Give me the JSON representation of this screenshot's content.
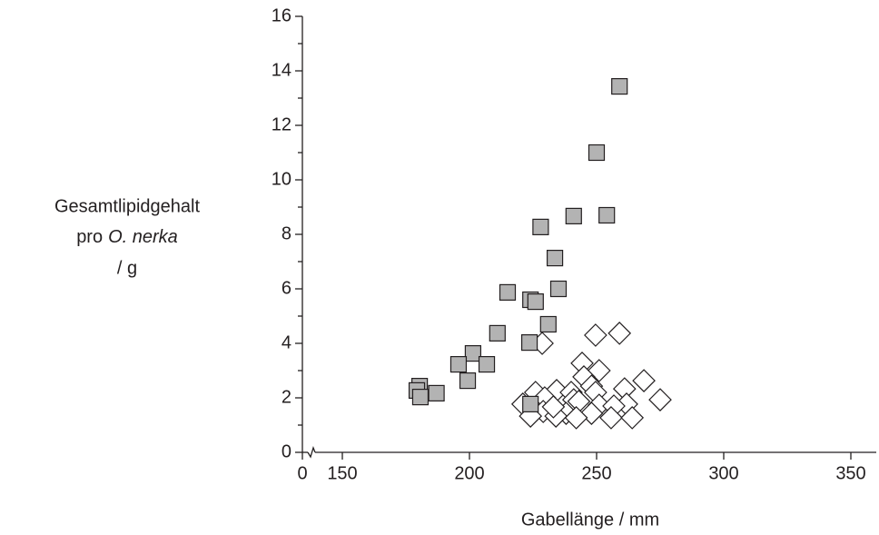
{
  "chart_data": {
    "type": "scatter",
    "x_label": "Gabellänge / mm",
    "y_label": {
      "line1": "Gesamtlipidgehalt",
      "line2": "pro",
      "line2_italic": "O. nerka",
      "line3": "/ g"
    },
    "xlim": [
      0,
      360
    ],
    "x_break": [
      0,
      140
    ],
    "xticks": [
      0,
      150,
      200,
      250,
      300,
      350
    ],
    "ylim": [
      0,
      16
    ],
    "yticks": [
      0,
      2,
      4,
      6,
      8,
      10,
      12,
      14,
      16
    ],
    "yminor_ticks": [
      1,
      3,
      5,
      7,
      9,
      11,
      13,
      15
    ],
    "grid": false,
    "series": [
      {
        "marker": "diamond",
        "color": "#ffffff",
        "x": [
          259,
          249.6,
          228.6,
          244.3,
          251,
          245,
          268.6,
          248,
          234.3,
          226,
          229.6,
          240,
          261,
          275,
          249.6,
          241,
          221,
          243,
          251,
          261.8,
          256.8,
          229,
          238,
          248,
          224,
          234,
          242,
          255.7,
          264,
          233
        ],
        "values": [
          4.37,
          4.3,
          4.0,
          3.27,
          3.0,
          2.77,
          2.63,
          2.43,
          2.27,
          2.2,
          2.0,
          2.2,
          2.33,
          1.93,
          2.2,
          1.93,
          1.77,
          1.87,
          1.73,
          1.77,
          1.7,
          1.5,
          1.43,
          1.43,
          1.33,
          1.33,
          1.27,
          1.27,
          1.27,
          1.67
        ]
      },
      {
        "marker": "square",
        "color": "#b3b3b3",
        "x": [
          259,
          250,
          254,
          241,
          228,
          233.6,
          235,
          215,
          224,
          226,
          231,
          211,
          223.6,
          201.4,
          195.7,
          206.8,
          199.3,
          180.4,
          179.3,
          187,
          180.7,
          224
        ],
        "values": [
          13.43,
          11.0,
          8.7,
          8.67,
          8.27,
          7.13,
          6.0,
          5.87,
          5.6,
          5.53,
          4.7,
          4.37,
          4.03,
          3.63,
          3.23,
          3.23,
          2.63,
          2.43,
          2.27,
          2.17,
          2.03,
          1.77
        ]
      }
    ]
  }
}
